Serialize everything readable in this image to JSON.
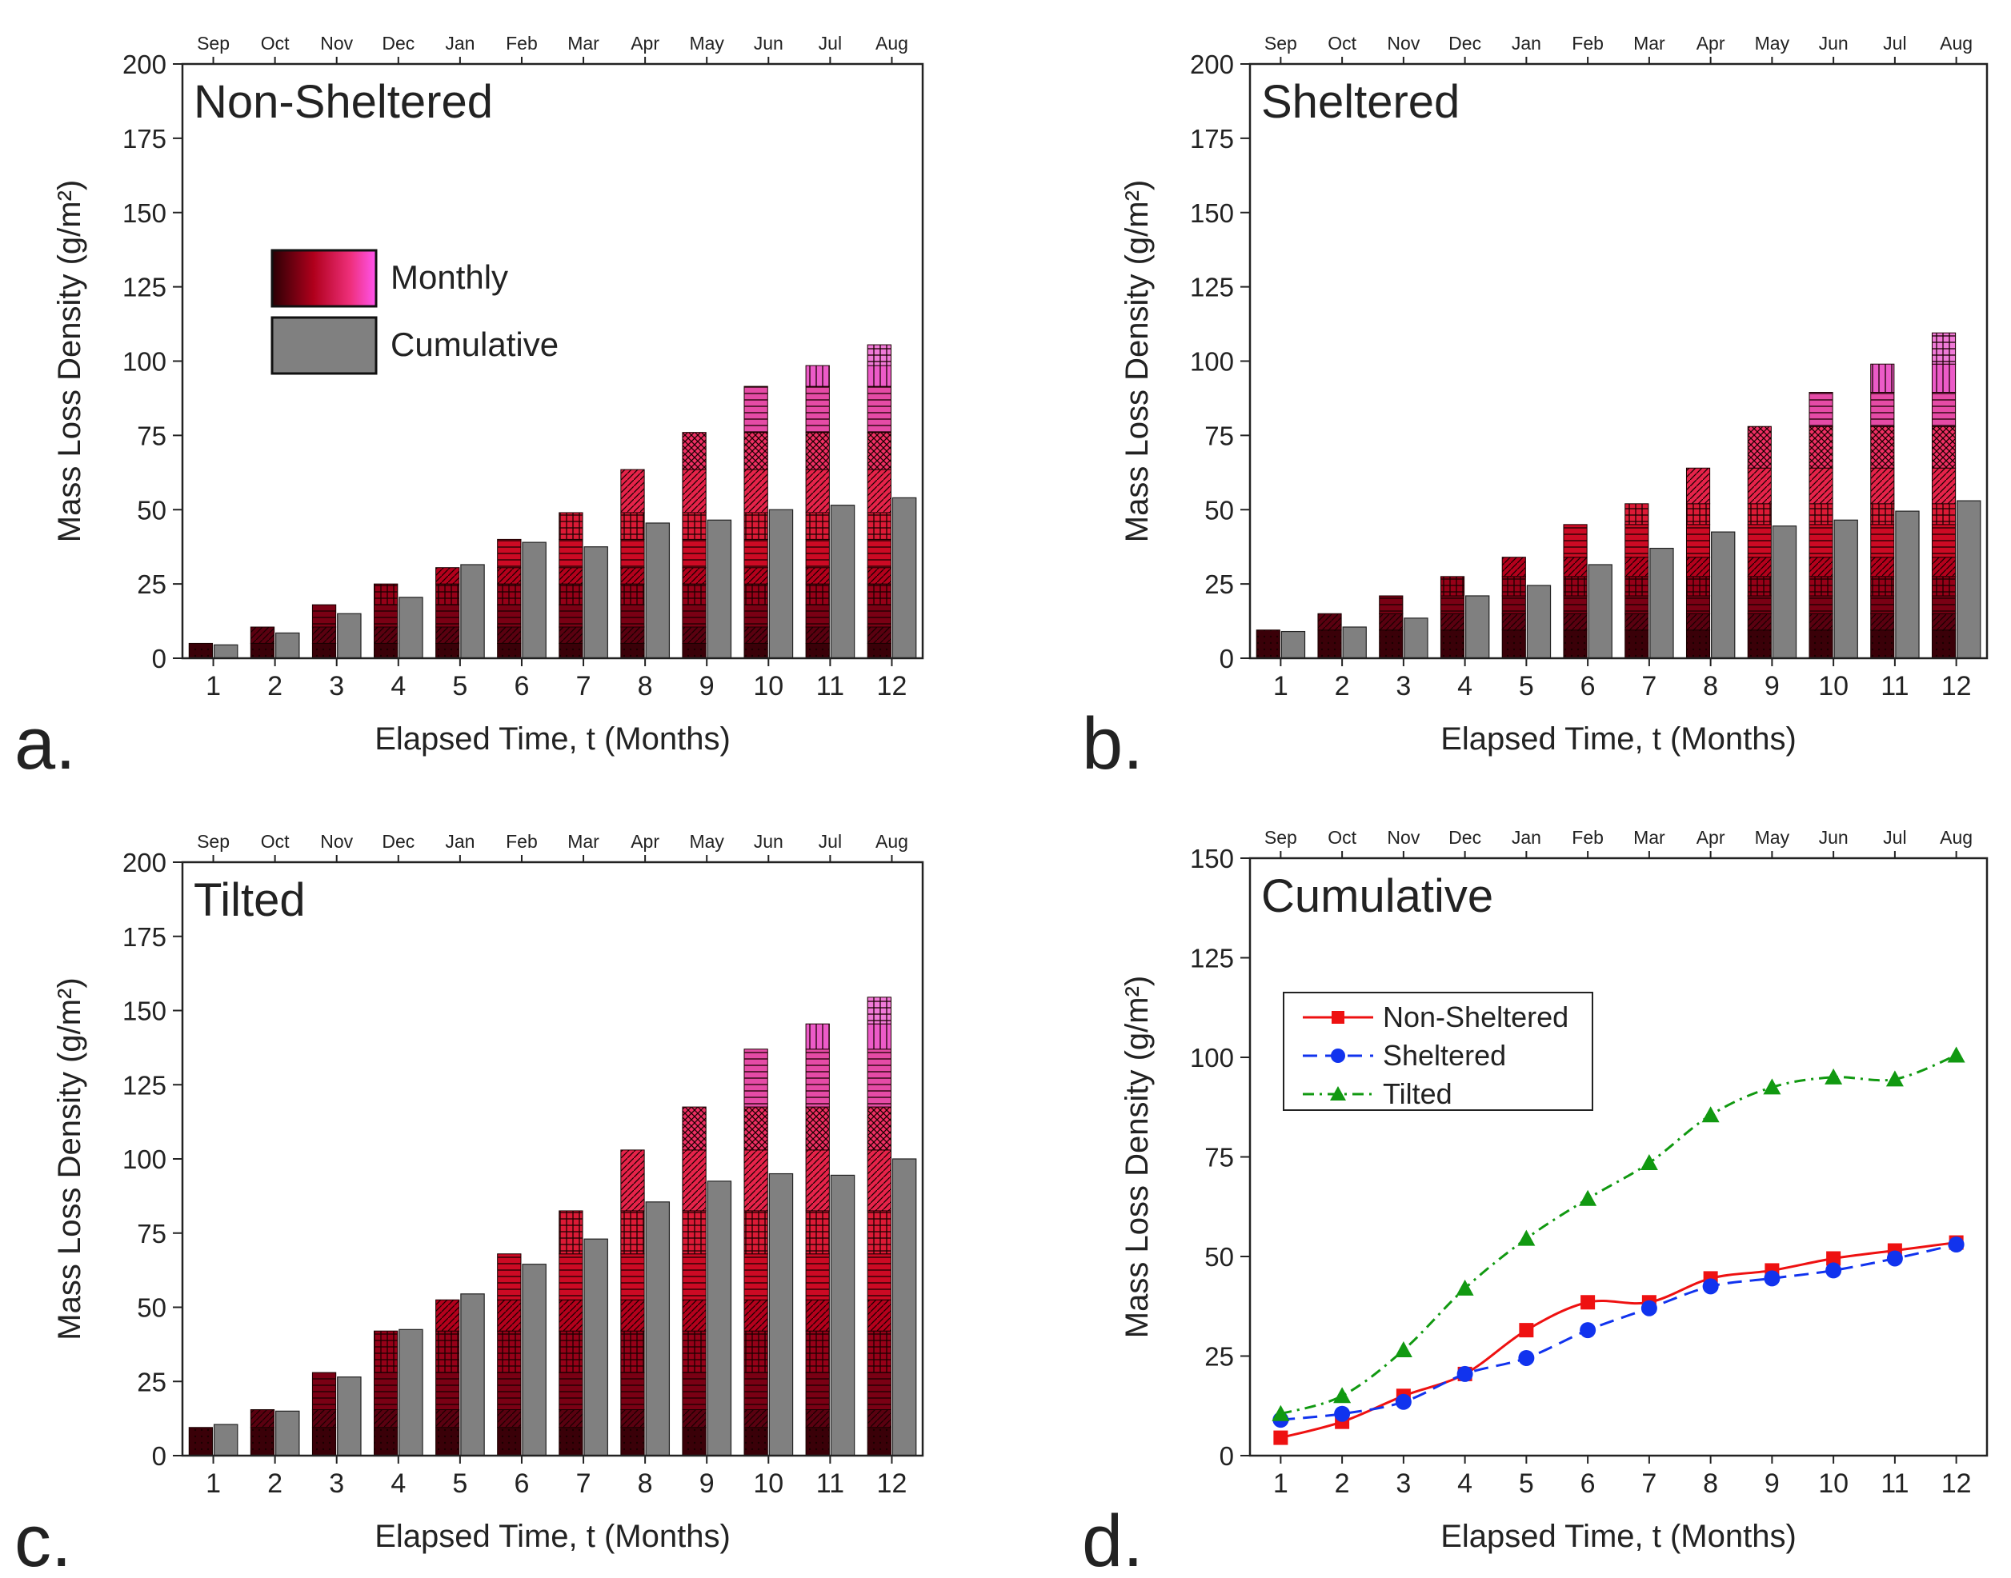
{
  "months": [
    "Sep",
    "Oct",
    "Nov",
    "Dec",
    "Jan",
    "Feb",
    "Mar",
    "Apr",
    "May",
    "Jun",
    "Jul",
    "Aug"
  ],
  "x_ticks": [
    "1",
    "2",
    "3",
    "4",
    "5",
    "6",
    "7",
    "8",
    "9",
    "10",
    "11",
    "12"
  ],
  "colors": {
    "cumulative_bar": "#808080",
    "axis": "#222222",
    "non_sheltered": "#ee1111",
    "sheltered": "#1133ee",
    "tilted": "#119911",
    "month_colors": [
      "#3a0008",
      "#5a0010",
      "#7a0014",
      "#960018",
      "#b4001c",
      "#cc0a24",
      "#dc1a36",
      "#e6234a",
      "#ee2f64",
      "#e54ba6",
      "#ec5bc8",
      "#f07ad8"
    ]
  },
  "chart_data": [
    {
      "id": "a",
      "type": "bar",
      "panel_letter": "a.",
      "title": "Non-Sheltered",
      "xlabel": "Elapsed Time, t (Months)",
      "ylabel": "Mass Loss Density (g/m²)",
      "ylim": [
        0,
        200
      ],
      "yticks": [
        "0",
        "25",
        "50",
        "75",
        "100",
        "125",
        "150",
        "175",
        "200"
      ],
      "categories": [
        "1",
        "2",
        "3",
        "4",
        "5",
        "6",
        "7",
        "8",
        "9",
        "10",
        "11",
        "12"
      ],
      "legend": {
        "monthly": "Monthly",
        "cumulative": "Cumulative"
      },
      "series": [
        {
          "name": "Monthly",
          "values": [
            5,
            10.5,
            18,
            25,
            30.5,
            40,
            49,
            63.5,
            76,
            91.5,
            98.5,
            105.5
          ]
        },
        {
          "name": "Cumulative",
          "values": [
            4.5,
            8.5,
            15,
            20.5,
            31.5,
            39,
            37.5,
            45.5,
            46.5,
            50,
            51.5,
            54
          ]
        }
      ]
    },
    {
      "id": "b",
      "type": "bar",
      "panel_letter": "b.",
      "title": "Sheltered",
      "xlabel": "Elapsed Time, t (Months)",
      "ylabel": "Mass Loss Density (g/m²)",
      "ylim": [
        0,
        200
      ],
      "yticks": [
        "0",
        "25",
        "50",
        "75",
        "100",
        "125",
        "150",
        "175",
        "200"
      ],
      "categories": [
        "1",
        "2",
        "3",
        "4",
        "5",
        "6",
        "7",
        "8",
        "9",
        "10",
        "11",
        "12"
      ],
      "series": [
        {
          "name": "Monthly",
          "values": [
            9.5,
            15,
            21,
            27.5,
            34,
            45,
            52,
            64,
            78,
            89.5,
            99,
            109.5
          ]
        },
        {
          "name": "Cumulative",
          "values": [
            9,
            10.5,
            13.5,
            21,
            24.5,
            31.5,
            37,
            42.5,
            44.5,
            46.5,
            49.5,
            53
          ]
        }
      ]
    },
    {
      "id": "c",
      "type": "bar",
      "panel_letter": "c.",
      "title": "Tilted",
      "xlabel": "Elapsed Time, t (Months)",
      "ylabel": "Mass Loss Density (g/m²)",
      "ylim": [
        0,
        200
      ],
      "yticks": [
        "0",
        "25",
        "50",
        "75",
        "100",
        "125",
        "150",
        "175",
        "200"
      ],
      "categories": [
        "1",
        "2",
        "3",
        "4",
        "5",
        "6",
        "7",
        "8",
        "9",
        "10",
        "11",
        "12"
      ],
      "series": [
        {
          "name": "Monthly",
          "values": [
            9.5,
            15.5,
            28,
            42,
            52.5,
            68,
            82.5,
            103,
            117.5,
            137,
            145.5,
            154.5
          ]
        },
        {
          "name": "Cumulative",
          "values": [
            10.5,
            15,
            26.5,
            42.5,
            54.5,
            64.5,
            73,
            85.5,
            92.5,
            95,
            94.5,
            100
          ]
        }
      ]
    },
    {
      "id": "d",
      "type": "line",
      "panel_letter": "d.",
      "title": "Cumulative",
      "xlabel": "Elapsed Time, t (Months)",
      "ylabel": "Mass Loss Density (g/m²)",
      "ylim": [
        0,
        150
      ],
      "yticks": [
        "0",
        "25",
        "50",
        "75",
        "100",
        "125",
        "150"
      ],
      "x": [
        1,
        2,
        3,
        4,
        5,
        6,
        7,
        8,
        9,
        10,
        11,
        12
      ],
      "series": [
        {
          "name": "Non-Sheltered",
          "marker": "square",
          "dash": "solid",
          "values": [
            4.5,
            8.5,
            15,
            20.5,
            31.5,
            38.5,
            38.5,
            44.5,
            46.5,
            49.5,
            51.5,
            53.5
          ]
        },
        {
          "name": "Sheltered",
          "marker": "circle",
          "dash": "dashed",
          "values": [
            9,
            10.5,
            13.5,
            20.5,
            24.5,
            31.5,
            37,
            42.5,
            44.5,
            46.5,
            49.5,
            53
          ]
        },
        {
          "name": "Tilted",
          "marker": "triangle",
          "dash": "dashdot",
          "values": [
            10.5,
            15,
            26.5,
            42,
            54.5,
            64.5,
            73.5,
            85.5,
            92.5,
            95,
            94.5,
            100.5
          ]
        }
      ]
    }
  ]
}
